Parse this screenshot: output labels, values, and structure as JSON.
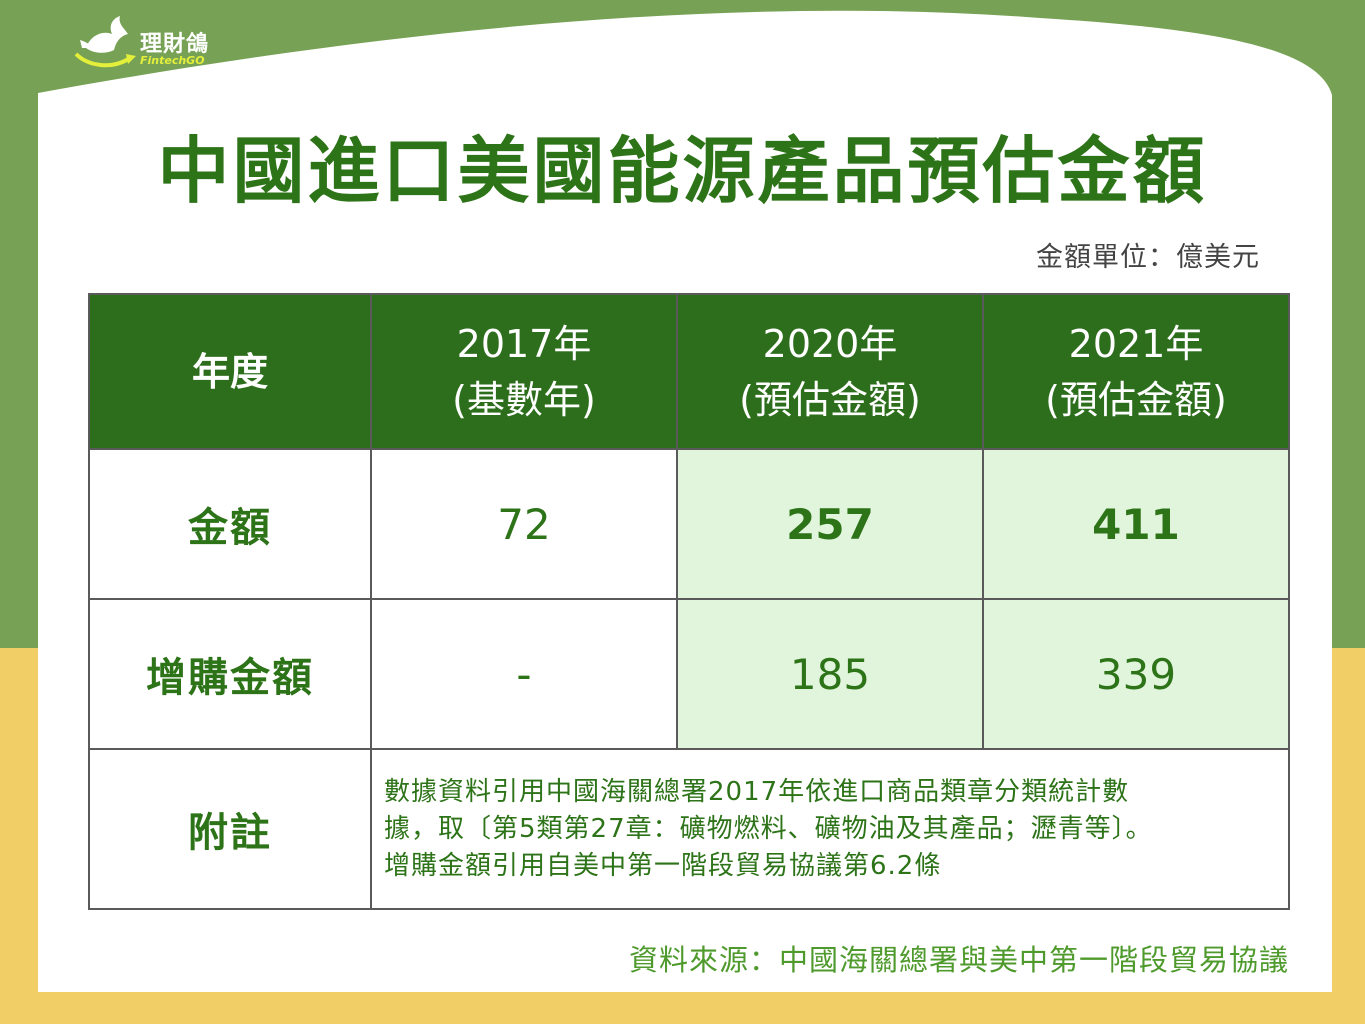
{
  "brand": {
    "name": "理財鴿",
    "sub": "FintechGO"
  },
  "title": "中國進口美國能源產品預估金額",
  "unit": "金額單位：億美元",
  "table": {
    "header": {
      "col0": "年度",
      "col1_line1": "2017年",
      "col1_line2": "(基數年)",
      "col2_line1": "2020年",
      "col2_line2": "(預估金額)",
      "col3_line1": "2021年",
      "col3_line2": "(預估金額)"
    },
    "rows": [
      {
        "label": "金額",
        "v2017": "72",
        "v2020": "257",
        "v2021": "411"
      },
      {
        "label": "增購金額",
        "v2017": "-",
        "v2020": "185",
        "v2021": "339"
      }
    ],
    "note": {
      "label": "附註",
      "line1": "數據資料引用中國海關總署2017年依進口商品類章分類統計數",
      "line2": "據，取〔第5類第27章：礦物燃料、礦物油及其產品；瀝青等〕。",
      "line3": "增購金額引用自美中第一階段貿易協議第6.2條"
    }
  },
  "source": "資料來源：中國海關總署與美中第一階段貿易協議",
  "colors": {
    "green_bg": "#77a255",
    "yellow_bg": "#f2cf66",
    "header_green": "#2d6e1c",
    "text_green": "#2d7318",
    "highlight": "#e1f5dc"
  },
  "icons": {
    "logo": "dove-logo-icon"
  }
}
